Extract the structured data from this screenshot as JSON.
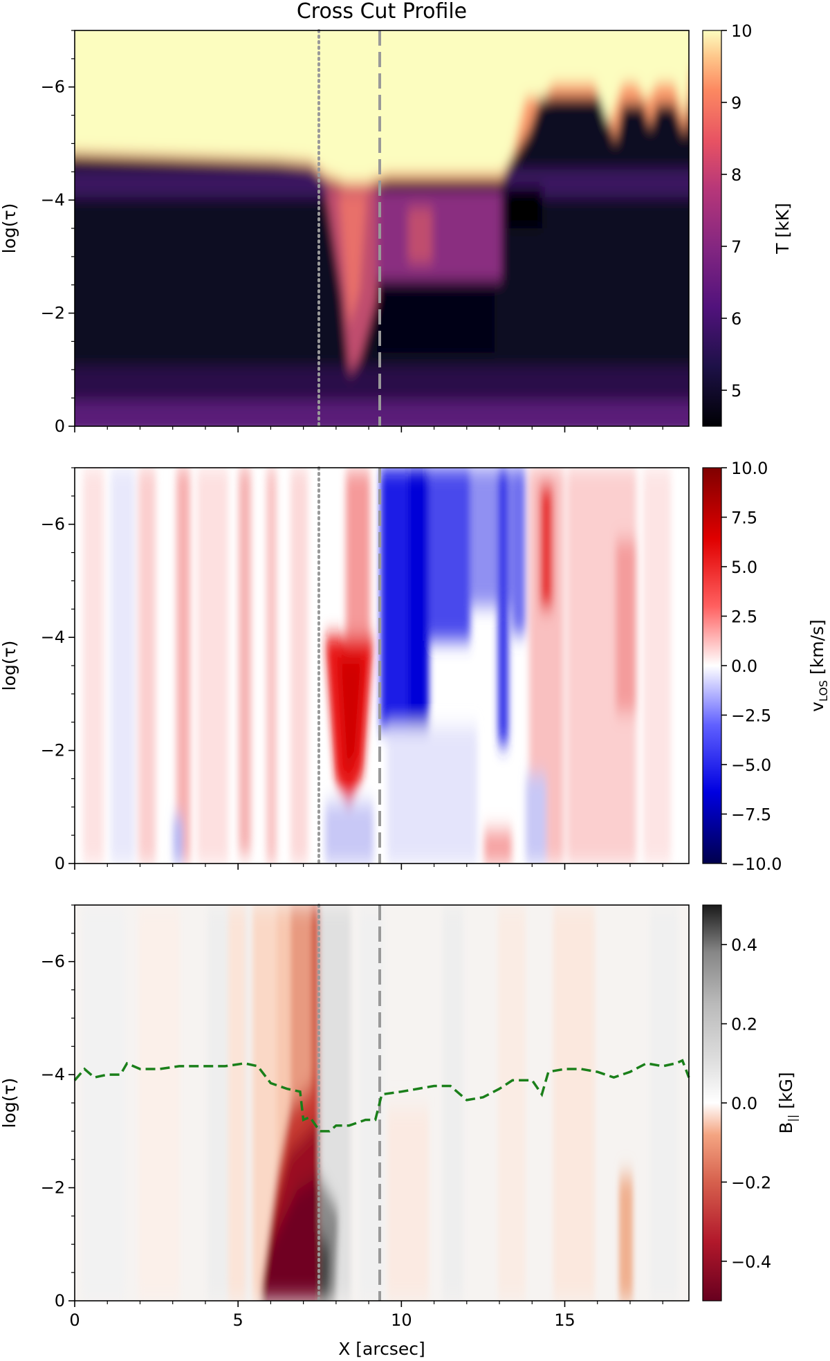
{
  "title": "Cross Cut Profile",
  "xlabel": "X [arcsec]",
  "ylabel": "log(τ)",
  "colors": {
    "marker_dotted": "#999999",
    "marker_dashed": "#999999",
    "trace": "#1a7f1a"
  },
  "chart_data": [
    {
      "type": "heatmap",
      "name": "temperature",
      "title": "Cross Cut Profile",
      "xlabel": "",
      "ylabel": "log(τ)",
      "x_range": [
        0,
        18.8
      ],
      "y_range": [
        0,
        -7
      ],
      "xticks": [
        0,
        5,
        10,
        15
      ],
      "yticks": [
        0,
        -2,
        -4,
        -6
      ],
      "ytick_labels": [
        "0",
        "−2",
        "−4",
        "−6"
      ],
      "colormap": "magma",
      "colorbar_label": "T [kK]",
      "colorbar_range": [
        4.5,
        10
      ],
      "colorbar_ticks": [
        5,
        6,
        7,
        8,
        9,
        10
      ],
      "colorbar_tick_labels": [
        "5",
        "6",
        "7",
        "8",
        "9",
        "10"
      ],
      "vlines": [
        {
          "x": 7.5,
          "style": "dotted"
        },
        {
          "x": 9.4,
          "style": "dashed"
        }
      ]
    },
    {
      "type": "heatmap",
      "name": "velocity",
      "xlabel": "",
      "ylabel": "log(τ)",
      "x_range": [
        0,
        18.8
      ],
      "y_range": [
        0,
        -7
      ],
      "xticks": [
        0,
        5,
        10,
        15
      ],
      "yticks": [
        0,
        -2,
        -4,
        -6
      ],
      "ytick_labels": [
        "0",
        "−2",
        "−4",
        "−6"
      ],
      "colormap": "seismic_r",
      "colorbar_label_main": "v",
      "colorbar_label_sub": "LOS",
      "colorbar_label_unit": " [km/s]",
      "colorbar_range": [
        -10,
        10
      ],
      "colorbar_ticks": [
        10,
        7.5,
        5,
        2.5,
        0,
        -2.5,
        -5,
        -7.5,
        -10
      ],
      "colorbar_tick_labels": [
        "10.0",
        "7.5",
        "5.0",
        "2.5",
        "0.0",
        "−2.5",
        "−5.0",
        "−7.5",
        "−10.0"
      ],
      "vlines": [
        {
          "x": 7.5,
          "style": "dotted"
        },
        {
          "x": 9.4,
          "style": "dashed"
        }
      ]
    },
    {
      "type": "heatmap",
      "name": "magnetic-field",
      "xlabel": "X [arcsec]",
      "ylabel": "log(τ)",
      "x_range": [
        0,
        18.8
      ],
      "y_range": [
        0,
        -7
      ],
      "xticks": [
        0,
        5,
        10,
        15
      ],
      "xtick_labels": [
        "0",
        "5",
        "10",
        "15"
      ],
      "yticks": [
        0,
        -2,
        -4,
        -6
      ],
      "ytick_labels": [
        "0",
        "−2",
        "−4",
        "−6"
      ],
      "colormap": "RdGy",
      "colorbar_label_main": "B",
      "colorbar_label_sub": "||",
      "colorbar_label_unit": " [kG]",
      "colorbar_range": [
        -0.5,
        0.5
      ],
      "colorbar_ticks": [
        0.4,
        0.2,
        0.0,
        -0.2,
        -0.4
      ],
      "colorbar_tick_labels": [
        "0.4",
        "0.2",
        "0.0",
        "−0.2",
        "−0.4"
      ],
      "vlines": [
        {
          "x": 7.5,
          "style": "dotted"
        },
        {
          "x": 9.4,
          "style": "dashed"
        }
      ],
      "line_series": {
        "name": "tau-surface",
        "style": "dashed",
        "x": [
          0,
          0.3,
          0.6,
          1.0,
          1.4,
          1.6,
          2.0,
          2.6,
          3.2,
          4.0,
          4.6,
          5.2,
          5.6,
          6.0,
          6.5,
          6.9,
          7.0,
          7.2,
          7.5,
          7.8,
          8.0,
          8.4,
          8.9,
          9.2,
          9.4,
          10.0,
          10.5,
          11.0,
          11.5,
          12.0,
          12.5,
          13.0,
          13.4,
          14.0,
          14.3,
          14.5,
          15.0,
          15.5,
          16.0,
          16.5,
          17.0,
          17.5,
          18.0,
          18.4,
          18.6,
          18.8
        ],
        "y": [
          -3.9,
          -4.1,
          -3.95,
          -4.0,
          -4.0,
          -4.2,
          -4.1,
          -4.1,
          -4.15,
          -4.15,
          -4.15,
          -4.2,
          -4.15,
          -3.85,
          -3.75,
          -3.7,
          -3.2,
          -3.25,
          -3.0,
          -3.0,
          -3.1,
          -3.1,
          -3.2,
          -3.2,
          -3.65,
          -3.7,
          -3.75,
          -3.8,
          -3.8,
          -3.55,
          -3.6,
          -3.75,
          -3.9,
          -3.9,
          -3.65,
          -4.05,
          -4.1,
          -4.1,
          -4.05,
          -3.95,
          -4.05,
          -4.2,
          -4.15,
          -4.2,
          -4.25,
          -3.95
        ]
      }
    }
  ]
}
